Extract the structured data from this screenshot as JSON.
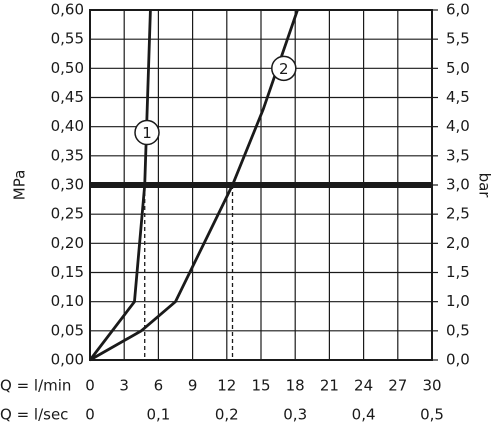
{
  "chart_data": {
    "type": "line",
    "x_label": "Q = l/min",
    "x2_label": "Q = l/sec",
    "y_label": "MPa",
    "y2_label": "bar",
    "xlim": [
      0,
      30
    ],
    "xticks": [
      0,
      3,
      6,
      9,
      12,
      15,
      18,
      21,
      24,
      27,
      30
    ],
    "x2lim": [
      0,
      0.5
    ],
    "x2ticks": [
      0,
      {
        "value": 0.1,
        "label": "0,1"
      },
      {
        "value": 0.2,
        "label": "0,2"
      },
      {
        "value": 0.3,
        "label": "0,3"
      },
      {
        "value": 0.4,
        "label": "0,4"
      },
      {
        "value": 0.5,
        "label": "0,5"
      }
    ],
    "ylim": [
      0,
      0.6
    ],
    "yticks": [
      {
        "value": 0,
        "label": "0,00"
      },
      {
        "value": 0.05,
        "label": "0,05"
      },
      {
        "value": 0.1,
        "label": "0,10"
      },
      {
        "value": 0.15,
        "label": "0,15"
      },
      {
        "value": 0.2,
        "label": "0,20"
      },
      {
        "value": 0.25,
        "label": "0,25"
      },
      {
        "value": 0.3,
        "label": "0,30"
      },
      {
        "value": 0.35,
        "label": "0,35"
      },
      {
        "value": 0.4,
        "label": "0,40"
      },
      {
        "value": 0.45,
        "label": "0,45"
      },
      {
        "value": 0.5,
        "label": "0,50"
      },
      {
        "value": 0.55,
        "label": "0,55"
      },
      {
        "value": 0.6,
        "label": "0,60"
      }
    ],
    "y2lim": [
      0,
      6
    ],
    "y2ticks": [
      {
        "value": 0,
        "label": "0,0"
      },
      {
        "value": 0.5,
        "label": "0,5"
      },
      {
        "value": 1,
        "label": "1,0"
      },
      {
        "value": 1.5,
        "label": "1,5"
      },
      {
        "value": 2,
        "label": "2,0"
      },
      {
        "value": 2.5,
        "label": "2,5"
      },
      {
        "value": 3,
        "label": "3,0"
      },
      {
        "value": 3.5,
        "label": "3,5"
      },
      {
        "value": 4,
        "label": "4,0"
      },
      {
        "value": 4.5,
        "label": "4,5"
      },
      {
        "value": 5,
        "label": "5,0"
      },
      {
        "value": 5.5,
        "label": "5,5"
      },
      {
        "value": 6,
        "label": "6,0"
      }
    ],
    "grid": true,
    "reference_y": 0.3,
    "reference_x": [
      4.8,
      12.5
    ],
    "series": [
      {
        "name": "1",
        "color": "#1a1a1a",
        "x": [
          0,
          3.9,
          4.8,
          5.3
        ],
        "values": [
          0,
          0.1,
          0.3,
          0.6
        ]
      },
      {
        "name": "2",
        "color": "#1a1a1a",
        "x": [
          0,
          4.5,
          7.5,
          10,
          12.5,
          15.2,
          18.2
        ],
        "values": [
          0,
          0.05,
          0.1,
          0.2,
          0.3,
          0.43,
          0.6
        ]
      }
    ]
  }
}
